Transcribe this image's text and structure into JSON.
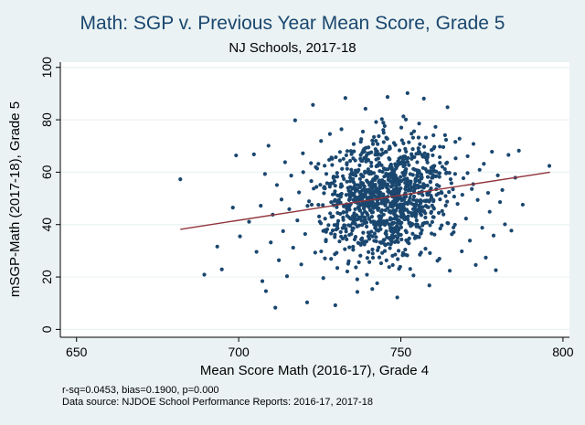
{
  "chart_data": {
    "type": "scatter",
    "title": "Math: SGP v. Previous Year Mean Score, Grade 5",
    "subtitle": "NJ Schools, 2017-18",
    "xlabel": "Mean Score Math (2016-17), Grade 4",
    "ylabel": "mSGP-Math (2017-18), Grade 5",
    "xlim": [
      645,
      802
    ],
    "ylim": [
      -3,
      102
    ],
    "xticks": [
      "650",
      "700",
      "750",
      "800"
    ],
    "yticks": [
      "0",
      "20",
      "40",
      "60",
      "80",
      "100"
    ],
    "grid": "horizontal",
    "marker_color": "#1a476f",
    "fit_color": "#90353b",
    "fit_line": {
      "x": [
        682,
        796
      ],
      "y": [
        38.2,
        60.0
      ]
    },
    "approx_points": 1200,
    "points": [
      [
        682,
        57.3
      ],
      [
        689.4,
        20.9
      ],
      [
        693.4,
        31.6
      ],
      [
        694.8,
        22.9
      ],
      [
        698.2,
        46.5
      ],
      [
        699.2,
        66.4
      ],
      [
        700.4,
        35.5
      ],
      [
        703.2,
        41.1
      ],
      [
        704.7,
        66.8
      ],
      [
        705.5,
        29.6
      ],
      [
        706.8,
        47.2
      ],
      [
        707.3,
        18.4
      ],
      [
        708.1,
        59.3
      ],
      [
        708.4,
        14.6
      ],
      [
        709.2,
        70.1
      ],
      [
        709.9,
        33.2
      ],
      [
        710.5,
        43.8
      ],
      [
        711.3,
        8.3
      ],
      [
        711.8,
        55.1
      ],
      [
        712.4,
        26.4
      ],
      [
        713.2,
        49.6
      ],
      [
        713.7,
        37.5
      ],
      [
        714.3,
        63.8
      ],
      [
        714.9,
        20.3
      ],
      [
        715.6,
        45.9
      ],
      [
        716.2,
        58.7
      ],
      [
        716.8,
        31.2
      ],
      [
        717.4,
        79.8
      ],
      [
        718.1,
        41.6
      ],
      [
        718.6,
        52.3
      ],
      [
        719.3,
        24.8
      ],
      [
        719.8,
        67.2
      ],
      [
        720.5,
        36.4
      ],
      [
        721.1,
        10.3
      ],
      [
        721.7,
        48.9
      ],
      [
        722.4,
        56.6
      ],
      [
        722.9,
        85.7
      ],
      [
        723.6,
        29.3
      ],
      [
        724.2,
        61.4
      ],
      [
        724.8,
        43.1
      ],
      [
        725.4,
        71.9
      ],
      [
        726.1,
        19.6
      ],
      [
        726.6,
        53.8
      ],
      [
        727.3,
        38.2
      ],
      [
        727.9,
        64.7
      ],
      [
        728.5,
        26.9
      ],
      [
        729.2,
        47.4
      ],
      [
        729.8,
        9.2
      ],
      [
        730.4,
        58.3
      ],
      [
        731.1,
        33.6
      ],
      [
        731.7,
        76.4
      ],
      [
        732.2,
        42.7
      ],
      [
        732.9,
        88.3
      ],
      [
        733.5,
        22.1
      ],
      [
        734.1,
        51.6
      ],
      [
        734.8,
        66.9
      ],
      [
        735.3,
        30.4
      ],
      [
        735.9,
        55.2
      ],
      [
        736.6,
        14.3
      ],
      [
        737.2,
        45.8
      ],
      [
        737.8,
        72.6
      ],
      [
        738.4,
        36.9
      ],
      [
        739.1,
        84.2
      ],
      [
        739.6,
        50.1
      ],
      [
        740.3,
        25.7
      ],
      [
        740.9,
        62.3
      ],
      [
        741.5,
        41.2
      ],
      [
        742.2,
        68.8
      ],
      [
        742.7,
        17.6
      ],
      [
        743.4,
        56.4
      ],
      [
        744.1,
        33.1
      ],
      [
        744.6,
        78.9
      ],
      [
        745.2,
        47.3
      ],
      [
        745.9,
        88.7
      ],
      [
        746.4,
        23.8
      ],
      [
        747.1,
        59.6
      ],
      [
        747.7,
        38.6
      ],
      [
        748.3,
        70.4
      ],
      [
        748.9,
        12.2
      ],
      [
        749.5,
        52.8
      ],
      [
        750.2,
        44.1
      ],
      [
        750.8,
        81.3
      ],
      [
        751.4,
        28.5
      ],
      [
        752.1,
        63.9
      ],
      [
        752.6,
        49.2
      ],
      [
        753.3,
        74.7
      ],
      [
        753.9,
        20.6
      ],
      [
        754.5,
        57.1
      ],
      [
        755.1,
        35.4
      ],
      [
        755.8,
        67.5
      ],
      [
        756.3,
        43.6
      ],
      [
        757.1,
        88.1
      ],
      [
        757.6,
        30.8
      ],
      [
        758.2,
        54.9
      ],
      [
        758.8,
        16.8
      ],
      [
        759.4,
        61.7
      ],
      [
        760.1,
        46.4
      ],
      [
        760.7,
        77.3
      ],
      [
        761.3,
        26.2
      ],
      [
        761.9,
        58.2
      ],
      [
        762.6,
        39.7
      ],
      [
        763.1,
        69.6
      ],
      [
        763.8,
        50.9
      ],
      [
        764.4,
        84.8
      ],
      [
        765.1,
        22.4
      ],
      [
        765.6,
        55.8
      ],
      [
        766.3,
        37.1
      ],
      [
        766.9,
        65.3
      ],
      [
        767.5,
        47.9
      ],
      [
        768.1,
        72.8
      ],
      [
        768.8,
        29.8
      ],
      [
        769.3,
        57.7
      ],
      [
        770.1,
        42.3
      ],
      [
        770.6,
        66.1
      ],
      [
        771.3,
        33.9
      ],
      [
        771.9,
        53.6
      ],
      [
        772.4,
        70.8
      ],
      [
        773.1,
        24.6
      ],
      [
        773.7,
        49.4
      ],
      [
        774.3,
        60.9
      ],
      [
        775.1,
        38.8
      ],
      [
        775.6,
        63.2
      ],
      [
        776.2,
        27.4
      ],
      [
        776.9,
        52.1
      ],
      [
        777.4,
        44.9
      ],
      [
        778.1,
        67.8
      ],
      [
        778.6,
        35.8
      ],
      [
        779.3,
        22.6
      ],
      [
        779.9,
        58.8
      ],
      [
        780.6,
        48.6
      ],
      [
        781.3,
        53.2
      ],
      [
        782.1,
        40.1
      ],
      [
        783.2,
        66.6
      ],
      [
        784.1,
        37.7
      ],
      [
        785.3,
        57.9
      ],
      [
        786.4,
        68.2
      ],
      [
        787.6,
        47.6
      ],
      [
        795.8,
        62.4
      ]
    ]
  },
  "footnotes": {
    "stats": "r-sq=0.0453, bias=0.1900, p=0.000",
    "source": "Data source: NJDOE School Performance Reports: 2016-17, 2017-18"
  }
}
